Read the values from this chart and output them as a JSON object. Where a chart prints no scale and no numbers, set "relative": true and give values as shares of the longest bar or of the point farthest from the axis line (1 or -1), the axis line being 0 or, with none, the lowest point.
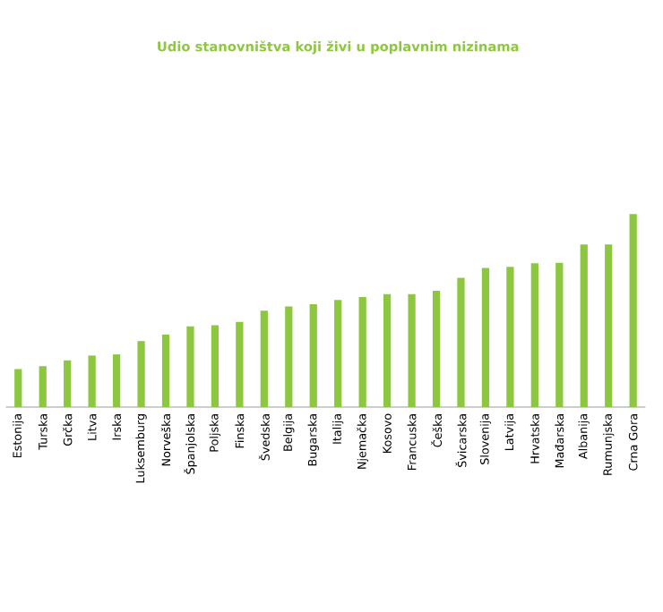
{
  "chart_data": {
    "type": "bar",
    "title": "Udio stanovništva koji živi u poplavnim nizinama",
    "relative": true,
    "color": "#8dc63f",
    "categories": [
      "Estonija",
      "Turska",
      "Grčka",
      "Litva",
      "Irska",
      "Luksemburg",
      "Norveška",
      "Španjolska",
      "Poljska",
      "Finska",
      "Švedska",
      "Belgija",
      "Bugarska",
      "Italija",
      "Njemačka",
      "Kosovo",
      "Francuska",
      "Češka",
      "Švicarska",
      "Slovenija",
      "Latvija",
      "Hrvatska",
      "Mađarska",
      "Albanija",
      "Rumunjska",
      "Crna Gora"
    ],
    "values": [
      0.197,
      0.212,
      0.242,
      0.267,
      0.273,
      0.342,
      0.376,
      0.418,
      0.424,
      0.442,
      0.5,
      0.521,
      0.533,
      0.555,
      0.57,
      0.585,
      0.585,
      0.603,
      0.67,
      0.721,
      0.727,
      0.745,
      0.748,
      0.842,
      0.842,
      1
    ]
  }
}
